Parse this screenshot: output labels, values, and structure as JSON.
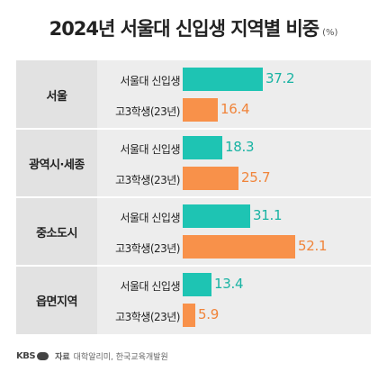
{
  "title": "2024년 서울대 신입생 지역별 비중",
  "unit": "(%)",
  "footer": {
    "logo": "KBS",
    "source_label": "자료",
    "source_text": "대학알리미, 한국교육개발원"
  },
  "colors": {
    "series0": "#1ec4b3",
    "series1": "#f8914a"
  },
  "chart_data": {
    "type": "bar",
    "orientation": "horizontal",
    "title": "2024년 서울대 신입생 지역별 비중",
    "unit": "(%)",
    "categories": [
      "서울",
      "광역시·세종",
      "중소도시",
      "읍면지역"
    ],
    "series": [
      {
        "name": "서울대 신입생",
        "values": [
          37.2,
          18.3,
          31.1,
          13.4
        ]
      },
      {
        "name": "고3학생(23년)",
        "values": [
          16.4,
          25.7,
          52.1,
          5.9
        ]
      }
    ],
    "xlim": [
      0,
      52.1
    ],
    "grid": false,
    "legend": "none"
  }
}
